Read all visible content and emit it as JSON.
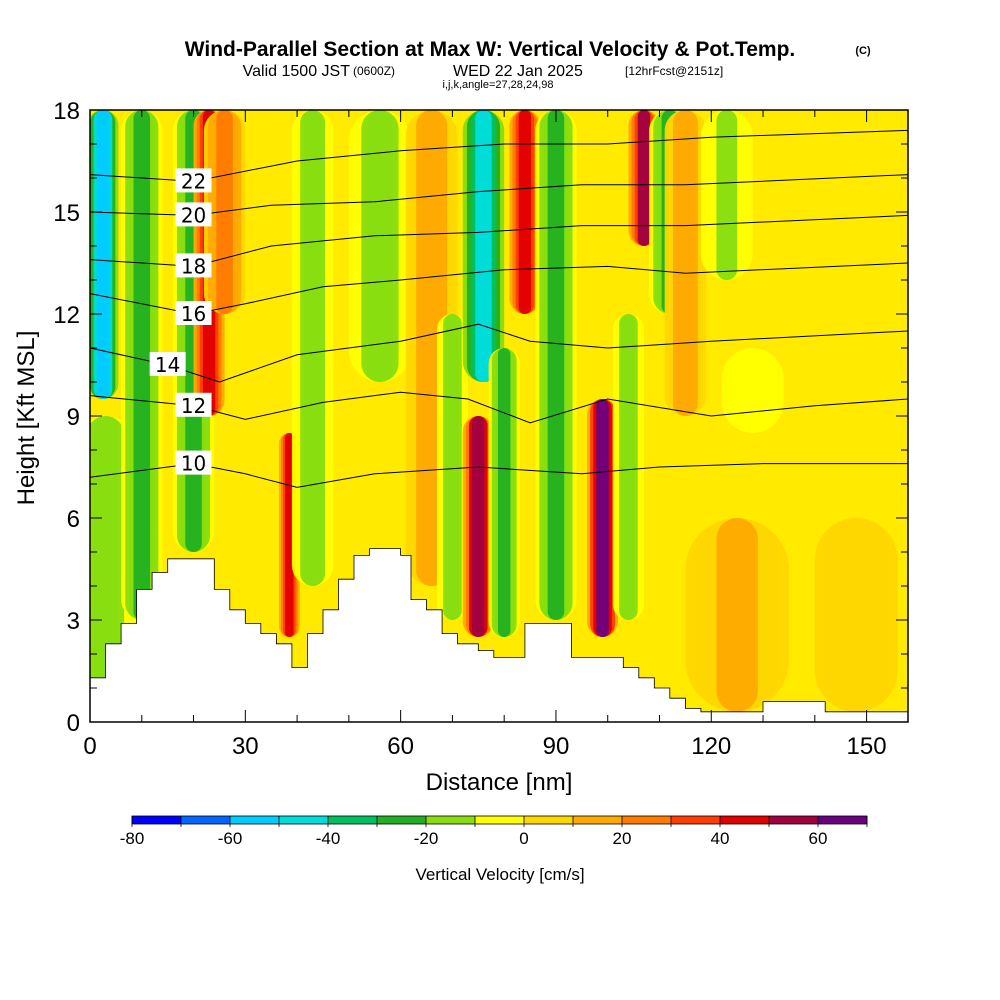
{
  "header": {
    "title": "Wind-Parallel Section at Max W: Vertical Velocity & Pot.Temp.",
    "copyright_mark": "(C)",
    "valid_prefix": "Valid 1500 JST",
    "utc_time": "(0600Z)",
    "valid_date": "WED 22 Jan 2025",
    "forecast_info": "[12hrFcst@2151z]",
    "indices": "i,j,k,angle=27,28,24,98"
  },
  "chart_data": {
    "type": "heatmap",
    "xlabel": "Distance [nm]",
    "ylabel": "Height [Kft MSL]",
    "xlim": [
      0,
      158
    ],
    "ylim": [
      0,
      18
    ],
    "x_ticks": [
      "0",
      "30",
      "60",
      "90",
      "120",
      "150"
    ],
    "y_ticks": [
      "0",
      "3",
      "6",
      "9",
      "12",
      "15",
      "18"
    ],
    "colorbar": {
      "title": "Vertical Velocity [cm/s]",
      "bounds": [
        -80,
        70
      ],
      "step": 10,
      "tick_labels": [
        "-80",
        "-60",
        "-40",
        "-20",
        "0",
        "20",
        "40",
        "60"
      ],
      "colors": [
        "#0000ff",
        "#0066ff",
        "#00ccff",
        "#00dddd",
        "#00c060",
        "#22b022",
        "#88dd10",
        "#ffff00",
        "#ffd700",
        "#ffaa00",
        "#ff7a00",
        "#ff3d00",
        "#e00000",
        "#a00040",
        "#6a0080"
      ]
    },
    "terrain": [
      [
        0,
        1.3
      ],
      [
        3,
        1.3
      ],
      [
        3,
        2.3
      ],
      [
        6,
        2.3
      ],
      [
        6,
        2.9
      ],
      [
        9,
        2.9
      ],
      [
        9,
        3.9
      ],
      [
        12,
        3.9
      ],
      [
        12,
        4.4
      ],
      [
        15,
        4.4
      ],
      [
        15,
        4.8
      ],
      [
        24,
        4.8
      ],
      [
        24,
        3.9
      ],
      [
        27,
        3.9
      ],
      [
        27,
        3.3
      ],
      [
        30,
        3.3
      ],
      [
        30,
        2.9
      ],
      [
        33,
        2.9
      ],
      [
        33,
        2.6
      ],
      [
        36,
        2.6
      ],
      [
        36,
        2.3
      ],
      [
        39,
        2.3
      ],
      [
        39,
        1.6
      ],
      [
        42,
        1.6
      ],
      [
        42,
        2.6
      ],
      [
        45,
        2.6
      ],
      [
        45,
        3.3
      ],
      [
        48,
        3.3
      ],
      [
        48,
        4.2
      ],
      [
        51,
        4.2
      ],
      [
        51,
        4.9
      ],
      [
        54,
        4.9
      ],
      [
        54,
        5.1
      ],
      [
        60,
        5.1
      ],
      [
        60,
        4.9
      ],
      [
        62,
        4.9
      ],
      [
        62,
        3.6
      ],
      [
        65,
        3.6
      ],
      [
        65,
        3.3
      ],
      [
        68,
        3.3
      ],
      [
        68,
        2.6
      ],
      [
        71,
        2.6
      ],
      [
        71,
        2.3
      ],
      [
        75,
        2.3
      ],
      [
        75,
        2.1
      ],
      [
        78,
        2.1
      ],
      [
        78,
        1.9
      ],
      [
        84,
        1.9
      ],
      [
        84,
        2.9
      ],
      [
        93,
        2.9
      ],
      [
        93,
        1.9
      ],
      [
        103,
        1.9
      ],
      [
        103,
        1.6
      ],
      [
        106,
        1.6
      ],
      [
        106,
        1.3
      ],
      [
        109,
        1.3
      ],
      [
        109,
        1.0
      ],
      [
        112,
        1.0
      ],
      [
        112,
        0.7
      ],
      [
        115,
        0.7
      ],
      [
        115,
        0.4
      ],
      [
        118,
        0.4
      ],
      [
        118,
        0.3
      ],
      [
        130,
        0.3
      ],
      [
        130,
        0.6
      ],
      [
        142,
        0.6
      ],
      [
        142,
        0.3
      ],
      [
        158,
        0.3
      ]
    ],
    "velocity_features": [
      {
        "x": 2.5,
        "y0": 9.5,
        "y1": 18,
        "w": -55,
        "width": 3
      },
      {
        "x": 3,
        "y0": 1.0,
        "y1": 9.0,
        "w": -15,
        "width": 6
      },
      {
        "x": 10,
        "y0": 3.0,
        "y1": 18,
        "w": -25,
        "width": 4
      },
      {
        "x": 20,
        "y0": 5.0,
        "y1": 18,
        "w": -22,
        "width": 4
      },
      {
        "x": 23,
        "y0": 9.0,
        "y1": 18,
        "w": 45,
        "width": 3
      },
      {
        "x": 26,
        "y0": 12.0,
        "y1": 18,
        "w": 25,
        "width": 4
      },
      {
        "x": 38.5,
        "y0": 2.5,
        "y1": 8.5,
        "w": 45,
        "width": 2
      },
      {
        "x": 43,
        "y0": 4.0,
        "y1": 18,
        "w": -20,
        "width": 4
      },
      {
        "x": 56,
        "y0": 10.0,
        "y1": 18,
        "w": -18,
        "width": 6
      },
      {
        "x": 66,
        "y0": 4.0,
        "y1": 18,
        "w": 18,
        "width": 5
      },
      {
        "x": 70,
        "y0": 3.0,
        "y1": 12.0,
        "w": -20,
        "width": 3
      },
      {
        "x": 75,
        "y0": 2.5,
        "y1": 9.0,
        "w": 55,
        "width": 3
      },
      {
        "x": 76,
        "y0": 10.0,
        "y1": 18,
        "w": -45,
        "width": 4
      },
      {
        "x": 80,
        "y0": 2.5,
        "y1": 11.0,
        "w": -25,
        "width": 3
      },
      {
        "x": 84,
        "y0": 12.0,
        "y1": 18,
        "w": 48,
        "width": 3
      },
      {
        "x": 90,
        "y0": 3.0,
        "y1": 18,
        "w": -22,
        "width": 4
      },
      {
        "x": 99,
        "y0": 2.5,
        "y1": 9.5,
        "w": 60,
        "width": 3
      },
      {
        "x": 104,
        "y0": 3.0,
        "y1": 12.0,
        "w": -20,
        "width": 3
      },
      {
        "x": 107,
        "y0": 14.0,
        "y1": 18,
        "w": 50,
        "width": 3
      },
      {
        "x": 112,
        "y0": 12.0,
        "y1": 18,
        "w": -22,
        "width": 4
      },
      {
        "x": 115,
        "y0": 9.0,
        "y1": 18,
        "w": 15,
        "width": 4
      },
      {
        "x": 123,
        "y0": 13.0,
        "y1": 18,
        "w": -12,
        "width": 5
      },
      {
        "x": 128,
        "y0": 8.5,
        "y1": 11.0,
        "w": -10,
        "width": 6
      },
      {
        "x": 125,
        "y0": 0.3,
        "y1": 6.0,
        "w": 10,
        "width": 10
      },
      {
        "x": 148,
        "y0": 0.3,
        "y1": 6.0,
        "w": 5,
        "width": 8
      }
    ],
    "theta_contours": [
      {
        "label": "10",
        "points": [
          [
            0,
            7.2
          ],
          [
            20,
            7.6
          ],
          [
            30,
            7.3
          ],
          [
            40,
            6.9
          ],
          [
            55,
            7.3
          ],
          [
            75,
            7.5
          ],
          [
            95,
            7.3
          ],
          [
            110,
            7.5
          ],
          [
            130,
            7.6
          ],
          [
            158,
            7.6
          ]
        ]
      },
      {
        "label": "12",
        "points": [
          [
            0,
            9.6
          ],
          [
            20,
            9.3
          ],
          [
            30,
            8.9
          ],
          [
            45,
            9.4
          ],
          [
            60,
            9.7
          ],
          [
            73,
            9.5
          ],
          [
            85,
            8.8
          ],
          [
            100,
            9.5
          ],
          [
            120,
            9.0
          ],
          [
            140,
            9.3
          ],
          [
            158,
            9.5
          ]
        ]
      },
      {
        "label": "14",
        "points": [
          [
            0,
            11.0
          ],
          [
            15,
            10.5
          ],
          [
            25,
            10.0
          ],
          [
            40,
            10.8
          ],
          [
            60,
            11.2
          ],
          [
            75,
            11.7
          ],
          [
            85,
            11.2
          ],
          [
            100,
            11.0
          ],
          [
            120,
            11.2
          ],
          [
            158,
            11.5
          ]
        ]
      },
      {
        "label": "16",
        "points": [
          [
            0,
            12.6
          ],
          [
            20,
            12.0
          ],
          [
            30,
            12.3
          ],
          [
            45,
            12.8
          ],
          [
            60,
            13.0
          ],
          [
            80,
            13.3
          ],
          [
            100,
            13.4
          ],
          [
            115,
            13.2
          ],
          [
            158,
            13.5
          ]
        ]
      },
      {
        "label": "18",
        "points": [
          [
            0,
            13.6
          ],
          [
            20,
            13.4
          ],
          [
            35,
            14.0
          ],
          [
            55,
            14.3
          ],
          [
            75,
            14.4
          ],
          [
            95,
            14.6
          ],
          [
            115,
            14.6
          ],
          [
            158,
            14.9
          ]
        ]
      },
      {
        "label": "20",
        "points": [
          [
            0,
            15.0
          ],
          [
            20,
            14.9
          ],
          [
            35,
            15.2
          ],
          [
            55,
            15.3
          ],
          [
            75,
            15.6
          ],
          [
            95,
            15.8
          ],
          [
            115,
            15.8
          ],
          [
            158,
            16.1
          ]
        ]
      },
      {
        "label": "22",
        "points": [
          [
            0,
            16.1
          ],
          [
            20,
            15.9
          ],
          [
            40,
            16.5
          ],
          [
            60,
            16.8
          ],
          [
            80,
            17.0
          ],
          [
            100,
            17.0
          ],
          [
            120,
            17.2
          ],
          [
            158,
            17.4
          ]
        ]
      }
    ]
  }
}
